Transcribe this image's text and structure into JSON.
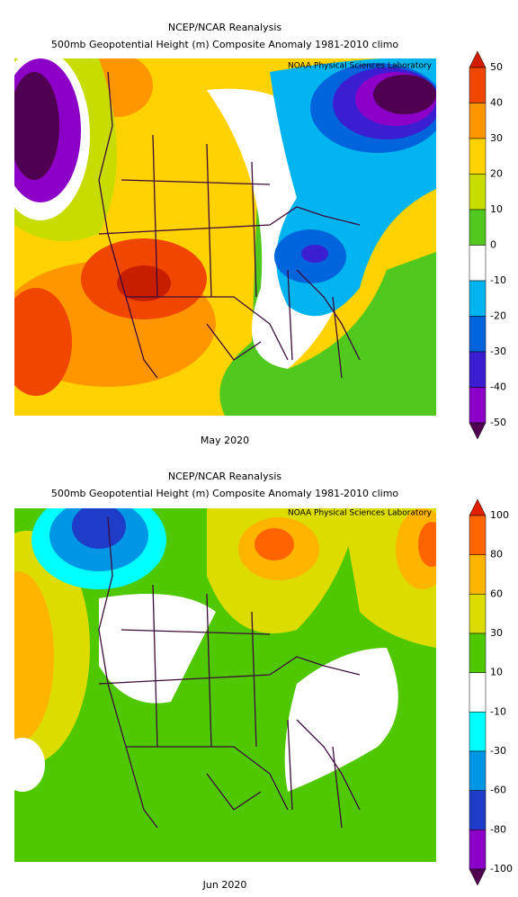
{
  "panels": [
    {
      "title": "NCEP/NCAR Reanalysis",
      "subtitle": "500mb Geopotential Height (m) Composite Anomaly 1981-2010 climo",
      "credit": "NOAA Physical Sciences Laboratory",
      "date_label": "May 2020",
      "colorbar": {
        "labels": [
          50,
          40,
          30,
          20,
          10,
          0,
          -10,
          -20,
          -30,
          -40,
          -50
        ],
        "colors": [
          "#d21e00",
          "#f04600",
          "#ff9600",
          "#ffd200",
          "#c8dc00",
          "#50c81e",
          "#ffffff",
          "#00b4f0",
          "#0064dc",
          "#3c1ed2",
          "#8c00c8",
          "#500050"
        ]
      }
    },
    {
      "title": "NCEP/NCAR Reanalysis",
      "subtitle": "500mb Geopotential Height (m) Composite Anomaly 1981-2010 climo",
      "credit": "NOAA Physical Sciences Laboratory",
      "date_label": "Jun 2020",
      "colorbar": {
        "labels": [
          100,
          80,
          60,
          30,
          10,
          -10,
          -30,
          -60,
          -80,
          -100
        ],
        "colors": [
          "#e02000",
          "#ff6400",
          "#ffb400",
          "#dcdc00",
          "#50c800",
          "#ffffff",
          "#00ffff",
          "#0096e6",
          "#1e3cc8",
          "#8c00c8",
          "#500050"
        ]
      }
    }
  ]
}
